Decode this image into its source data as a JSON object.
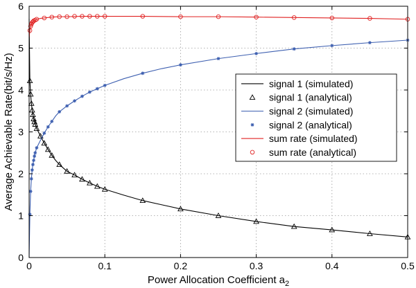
{
  "chart_data": {
    "type": "line",
    "xlabel": "Power Allocation Coefficient  a",
    "xlabel_subscript": "2",
    "ylabel": "Average Achievable Rate(bit/s/Hz)",
    "xlim": [
      0,
      0.5
    ],
    "ylim": [
      0,
      6
    ],
    "xticks": [
      0,
      0.1,
      0.2,
      0.3,
      0.4,
      0.5
    ],
    "xtick_labels": [
      "0",
      "0.1",
      "0.2",
      "0.3",
      "0.4",
      "0.5"
    ],
    "yticks": [
      0,
      1,
      2,
      3,
      4,
      5,
      6
    ],
    "ytick_labels": [
      "0",
      "1",
      "2",
      "3",
      "4",
      "5",
      "6"
    ],
    "grid": true,
    "legend_position": "right-middle",
    "series": [
      {
        "name": "signal 1 (simulated)",
        "color": "#000000",
        "style": "line",
        "x": [
          0.0,
          0.001,
          0.002,
          0.003,
          0.004,
          0.005,
          0.006,
          0.007,
          0.008,
          0.01,
          0.015,
          0.02,
          0.025,
          0.03,
          0.035,
          0.04,
          0.05,
          0.06,
          0.07,
          0.08,
          0.09,
          0.1,
          0.125,
          0.15,
          0.175,
          0.2,
          0.25,
          0.3,
          0.35,
          0.4,
          0.45,
          0.5
        ],
        "y": [
          5.7,
          4.22,
          3.9,
          3.68,
          3.52,
          3.41,
          3.31,
          3.24,
          3.18,
          3.08,
          2.9,
          2.73,
          2.58,
          2.44,
          2.32,
          2.22,
          2.06,
          1.97,
          1.87,
          1.78,
          1.7,
          1.63,
          1.49,
          1.36,
          1.26,
          1.16,
          1.0,
          0.86,
          0.74,
          0.66,
          0.57,
          0.49
        ]
      },
      {
        "name": "signal 1 (analytical)",
        "color": "#000000",
        "style": "marker-triangle",
        "x": [
          0.001,
          0.002,
          0.003,
          0.004,
          0.005,
          0.006,
          0.007,
          0.008,
          0.01,
          0.015,
          0.02,
          0.025,
          0.03,
          0.04,
          0.05,
          0.06,
          0.07,
          0.08,
          0.09,
          0.1,
          0.15,
          0.2,
          0.25,
          0.3,
          0.35,
          0.4,
          0.45,
          0.5
        ],
        "y": [
          4.22,
          3.9,
          3.68,
          3.52,
          3.41,
          3.31,
          3.24,
          3.18,
          3.08,
          2.9,
          2.73,
          2.58,
          2.44,
          2.22,
          2.06,
          1.97,
          1.87,
          1.78,
          1.7,
          1.63,
          1.36,
          1.16,
          1.0,
          0.86,
          0.74,
          0.66,
          0.57,
          0.49
        ]
      },
      {
        "name": "signal 2 (simulated)",
        "color": "#3d5fb0",
        "style": "line",
        "x": [
          0.0,
          0.001,
          0.002,
          0.003,
          0.004,
          0.005,
          0.006,
          0.007,
          0.008,
          0.01,
          0.015,
          0.02,
          0.025,
          0.03,
          0.035,
          0.04,
          0.05,
          0.06,
          0.07,
          0.08,
          0.09,
          0.1,
          0.125,
          0.15,
          0.175,
          0.2,
          0.25,
          0.3,
          0.35,
          0.4,
          0.45,
          0.5
        ],
        "y": [
          0.0,
          1.03,
          1.58,
          1.88,
          2.09,
          2.22,
          2.32,
          2.42,
          2.5,
          2.62,
          2.8,
          2.97,
          3.12,
          3.25,
          3.38,
          3.48,
          3.62,
          3.74,
          3.85,
          3.95,
          4.03,
          4.11,
          4.27,
          4.4,
          4.51,
          4.6,
          4.75,
          4.87,
          4.98,
          5.06,
          5.13,
          5.19
        ]
      },
      {
        "name": "signal 2 (analytical)",
        "color": "#3d5fb0",
        "style": "marker-star",
        "x": [
          0.001,
          0.002,
          0.003,
          0.004,
          0.005,
          0.006,
          0.007,
          0.008,
          0.01,
          0.02,
          0.025,
          0.03,
          0.04,
          0.05,
          0.06,
          0.07,
          0.08,
          0.09,
          0.1,
          0.15,
          0.2,
          0.25,
          0.3,
          0.35,
          0.4,
          0.45,
          0.5
        ],
        "y": [
          1.03,
          1.58,
          1.88,
          2.09,
          2.22,
          2.32,
          2.42,
          2.5,
          2.62,
          2.97,
          3.12,
          3.25,
          3.48,
          3.62,
          3.74,
          3.85,
          3.95,
          4.03,
          4.11,
          4.4,
          4.6,
          4.75,
          4.87,
          4.98,
          5.06,
          5.13,
          5.19
        ]
      },
      {
        "name": "sum rate (simulated)",
        "color": "#e02020",
        "style": "line",
        "x": [
          0.0,
          0.001,
          0.002,
          0.003,
          0.004,
          0.005,
          0.007,
          0.01,
          0.015,
          0.02,
          0.03,
          0.04,
          0.05,
          0.07,
          0.1,
          0.15,
          0.2,
          0.25,
          0.3,
          0.35,
          0.4,
          0.45,
          0.5
        ],
        "y": [
          5.25,
          5.42,
          5.52,
          5.57,
          5.61,
          5.63,
          5.66,
          5.69,
          5.71,
          5.72,
          5.74,
          5.75,
          5.75,
          5.76,
          5.76,
          5.76,
          5.75,
          5.75,
          5.74,
          5.73,
          5.72,
          5.71,
          5.69
        ]
      },
      {
        "name": "sum rate (analytical)",
        "color": "#e02020",
        "style": "marker-circle",
        "x": [
          0.001,
          0.002,
          0.003,
          0.004,
          0.005,
          0.006,
          0.008,
          0.01,
          0.02,
          0.03,
          0.04,
          0.05,
          0.06,
          0.07,
          0.08,
          0.09,
          0.1,
          0.15,
          0.2,
          0.25,
          0.3,
          0.35,
          0.4,
          0.45,
          0.5
        ],
        "y": [
          5.42,
          5.52,
          5.57,
          5.61,
          5.63,
          5.65,
          5.67,
          5.69,
          5.72,
          5.74,
          5.75,
          5.75,
          5.76,
          5.76,
          5.76,
          5.76,
          5.76,
          5.76,
          5.75,
          5.75,
          5.74,
          5.73,
          5.72,
          5.71,
          5.69
        ]
      }
    ]
  }
}
